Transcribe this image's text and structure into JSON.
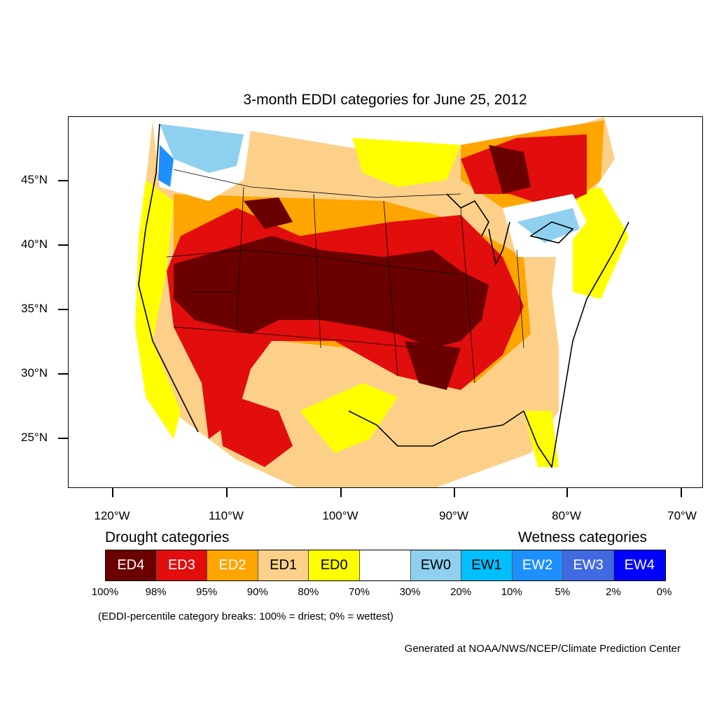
{
  "title": "3-month EDDI categories for June 25, 2012",
  "lat_labels": [
    "45°N",
    "40°N",
    "35°N",
    "30°N",
    "25°N"
  ],
  "lon_labels": [
    "120°W",
    "110°W",
    "100°W",
    "90°W",
    "80°W",
    "70°W"
  ],
  "legend": {
    "drought_title": "Drought categories",
    "wetness_title": "Wetness categories",
    "categories": [
      {
        "label": "ED4",
        "color": "#6b0000",
        "text_color": "#ffffff"
      },
      {
        "label": "ED3",
        "color": "#e20d0d",
        "text_color": "#ffffff"
      },
      {
        "label": "ED2",
        "color": "#ffa500",
        "text_color": "#ffffff"
      },
      {
        "label": "ED1",
        "color": "#fdd08a",
        "text_color": "#000000"
      },
      {
        "label": "ED0",
        "color": "#ffff00",
        "text_color": "#000000"
      },
      {
        "label": "",
        "color": "#ffffff",
        "text_color": "#000000"
      },
      {
        "label": "EW0",
        "color": "#8fd0f0",
        "text_color": "#000000"
      },
      {
        "label": "EW1",
        "color": "#00bfff",
        "text_color": "#000000"
      },
      {
        "label": "EW2",
        "color": "#1e8fff",
        "text_color": "#ffffff"
      },
      {
        "label": "EW3",
        "color": "#4169e1",
        "text_color": "#ffffff"
      },
      {
        "label": "EW4",
        "color": "#0000ff",
        "text_color": "#ffffff"
      }
    ],
    "breaks": [
      "100%",
      "98%",
      "95%",
      "90%",
      "80%",
      "70%",
      "30%",
      "20%",
      "10%",
      "5%",
      "2%",
      "0%"
    ]
  },
  "note": "(EDDI-percentile category breaks: 100% = driest; 0% = wettest)",
  "credit": "Generated at NOAA/NWS/NCEP/Climate Prediction Center"
}
